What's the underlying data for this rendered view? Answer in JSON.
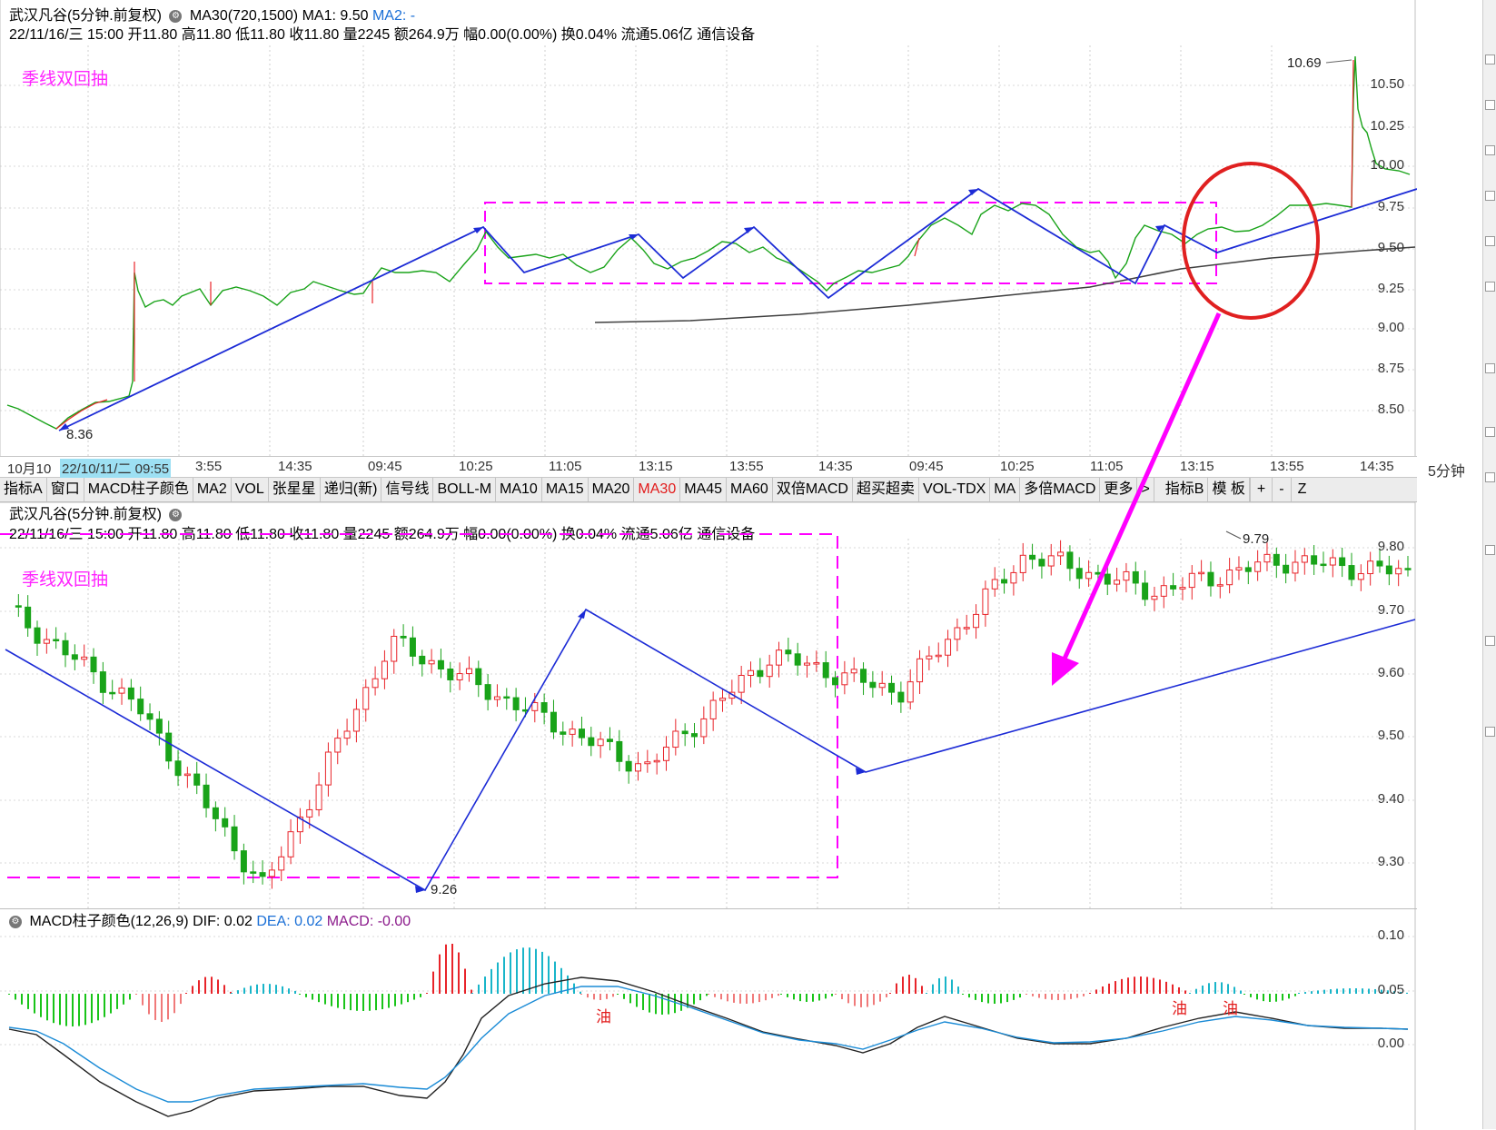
{
  "stock_header": {
    "title": "武汉凡谷(5分钟.前复权)",
    "ma_params": "MA30(720,1500)",
    "ma1": "MA1: 9.50",
    "ma2": "MA2: -",
    "quote_line": "22/11/16/三 15:00 开11.80 高11.80 低11.80 收11.80 量2245 额264.9万 幅0.00(0.00%) 换0.04% 流通5.06亿 通信设备"
  },
  "annotations": {
    "pattern_label": "季线双回抽",
    "top_high": "10.69",
    "top_low": "8.36",
    "mid_high": "9.79",
    "mid_low": "9.26",
    "oil_marker": "油"
  },
  "top_axis": [
    "10.50",
    "10.25",
    "10.00",
    "9.75",
    "9.50",
    "9.25",
    "9.00",
    "8.75",
    "8.50"
  ],
  "mid_axis": [
    "9.80",
    "9.70",
    "9.60",
    "9.50",
    "9.40",
    "9.30"
  ],
  "macd_axis": [
    "0.10",
    "0.05",
    "0.00"
  ],
  "time_axis": {
    "first": "10月10",
    "selected": "22/10/11/二 09:55",
    "labels": [
      "3:55",
      "14:35",
      "09:45",
      "10:25",
      "11:05",
      "13:15",
      "13:55",
      "14:35",
      "09:45",
      "10:25",
      "11:05",
      "13:15",
      "13:55",
      "14:35"
    ],
    "period": "5分钟"
  },
  "toolbar": {
    "tabs": [
      "指标A",
      "窗口",
      "MACD柱子颜色",
      "MA2",
      "VOL",
      "张星星",
      "递归(新)",
      "信号线",
      "BOLL-M",
      "MA10",
      "MA15",
      "MA20",
      "MA30",
      "MA45",
      "MA60",
      "双倍MACD",
      "超买超卖",
      "VOL-TDX",
      "MA",
      "多倍MACD",
      "更多",
      ">",
      "指标B",
      "模 板"
    ],
    "active": "MA30",
    "controls": [
      "+",
      "-",
      "Z"
    ]
  },
  "macd_header": {
    "name": "MACD柱子颜色(12,26,9)",
    "dif": "DIF: 0.02",
    "dea": "DEA: 0.02",
    "macd": "MACD: -0.00"
  },
  "colors": {
    "magenta": "#ff00ff",
    "trend_line": "#1c2bd6",
    "ma_line": "#404040",
    "up": "#e8242a",
    "down": "#19a319",
    "dea": "#1a8bd6",
    "circle": "#e02020"
  },
  "chart_data": [
    {
      "type": "line",
      "title": "武汉凡谷(5分钟.前复权)",
      "ylim": [
        8.36,
        10.69
      ],
      "series": [
        {
          "name": "MA1",
          "values": [
            9.05,
            9.1,
            9.18,
            9.22,
            9.27,
            9.3,
            9.37,
            9.42,
            9.48,
            9.5
          ]
        }
      ],
      "price_path": [
        8.36,
        8.55,
        9.35,
        9.3,
        9.62,
        9.35,
        9.65,
        9.3,
        9.62,
        9.2,
        9.84,
        9.27,
        9.65,
        9.45,
        9.75,
        10.69,
        10.0,
        9.95
      ],
      "notes": [
        "10.69",
        "8.36"
      ]
    },
    {
      "type": "line",
      "title": "武汉凡谷(5分钟.前复权)",
      "ylim": [
        9.26,
        9.79
      ],
      "price_path": [
        9.7,
        9.55,
        9.26,
        9.65,
        9.55,
        9.45,
        9.63,
        9.57,
        9.79,
        9.73,
        9.78,
        9.76
      ],
      "notes": [
        "9.79",
        "9.26"
      ]
    },
    {
      "type": "bar",
      "title": "MACD柱子颜色(12,26,9)",
      "ylim": [
        -0.06,
        0.1
      ],
      "series": [
        {
          "name": "DIF",
          "values": [
            0.02,
            -0.02,
            -0.05,
            -0.03,
            -0.03,
            -0.04,
            0.03,
            0.05,
            0.04,
            0.01,
            -0.01,
            0.02,
            0.01,
            0.0,
            0.02,
            0.035,
            0.025,
            0.02
          ]
        },
        {
          "name": "DEA",
          "values": [
            0.02,
            0.0,
            -0.03,
            -0.035,
            -0.03,
            -0.035,
            0.0,
            0.03,
            0.04,
            0.025,
            0.0,
            0.01,
            0.015,
            0.0,
            0.01,
            0.03,
            0.025,
            0.02
          ]
        }
      ]
    }
  ]
}
